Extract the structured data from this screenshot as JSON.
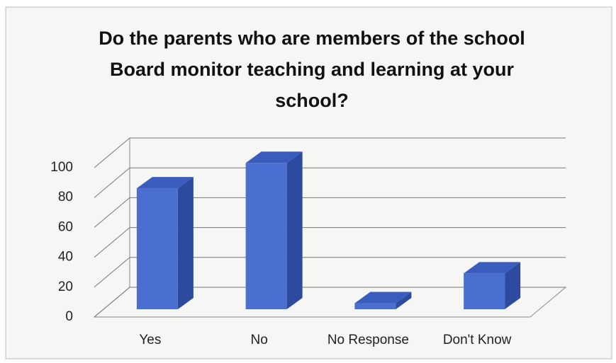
{
  "chart_data": {
    "type": "bar",
    "title": "Do the parents who are members of the school Board monitor teaching and learning at your school?",
    "categories": [
      "Yes",
      "No",
      "No Response",
      "Don't Know"
    ],
    "values": [
      81,
      98,
      4,
      24
    ],
    "color": "#4a6fd0",
    "ylim": [
      0,
      100
    ],
    "yticks": [
      0,
      20,
      40,
      60,
      80,
      100
    ],
    "grid": true
  }
}
